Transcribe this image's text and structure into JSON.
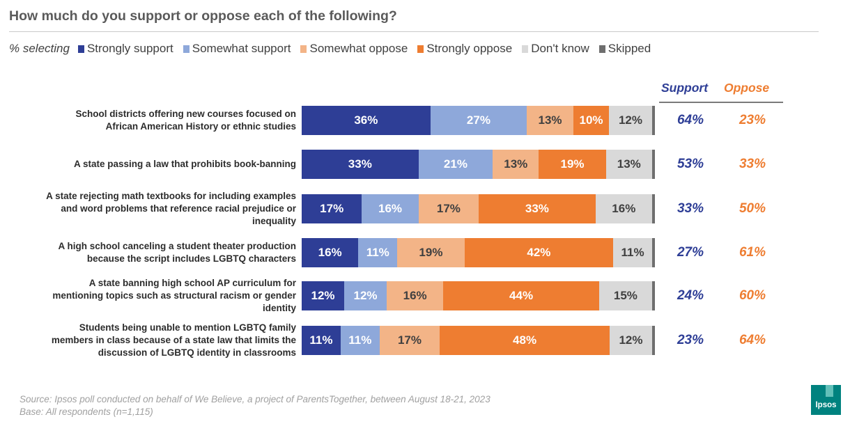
{
  "title": "How much do you support or oppose each of the following?",
  "legend": {
    "lead": "% selecting",
    "items": [
      {
        "label": "Strongly support",
        "color": "#2e3e96"
      },
      {
        "label": "Somewhat support",
        "color": "#8ea8da"
      },
      {
        "label": "Somewhat oppose",
        "color": "#f3b487"
      },
      {
        "label": "Strongly oppose",
        "color": "#ee7d31"
      },
      {
        "label": "Don't know",
        "color": "#d9d9d9"
      },
      {
        "label": "Skipped",
        "color": "#6e6e6e"
      }
    ]
  },
  "columns": {
    "support": {
      "label": "Support",
      "color": "#2e3e96"
    },
    "oppose": {
      "label": "Oppose",
      "color": "#ee7d31"
    }
  },
  "chart_data": {
    "type": "bar",
    "orientation": "horizontal",
    "stacked": true,
    "title": "How much do you support or oppose each of the following?",
    "categories": [
      [
        "School districts offering new courses focused on",
        "African American History or ethnic studies"
      ],
      [
        "A state passing  a law that prohibits book-banning"
      ],
      [
        "A state rejecting math textbooks for including examples",
        "and word problems that reference racial prejudice or",
        "inequality"
      ],
      [
        "A high school canceling a student theater production",
        "because the script includes LGBTQ characters"
      ],
      [
        "A state banning high school AP curriculum for",
        "mentioning topics such as structural racism or gender",
        "identity"
      ],
      [
        "Students being unable to mention LGBTQ family",
        "members in class because of a state law that limits the",
        "discussion of LGBTQ identity in classrooms"
      ]
    ],
    "series": [
      {
        "name": "Strongly support",
        "values": [
          36,
          33,
          17,
          16,
          12,
          11
        ],
        "labels": [
          "36%",
          "33%",
          "17%",
          "16%",
          "12%",
          "11%"
        ]
      },
      {
        "name": "Somewhat support",
        "values": [
          27,
          21,
          16,
          11,
          12,
          11
        ],
        "labels": [
          "27%",
          "21%",
          "16%",
          "11%",
          "12%",
          "11%"
        ]
      },
      {
        "name": "Somewhat oppose",
        "values": [
          13,
          13,
          17,
          19,
          16,
          17
        ],
        "labels": [
          "13%",
          "13%",
          "17%",
          "19%",
          "16%",
          "17%"
        ]
      },
      {
        "name": "Strongly oppose",
        "values": [
          10,
          19,
          33,
          42,
          44,
          48
        ],
        "labels": [
          "10%",
          "19%",
          "33%",
          "42%",
          "44%",
          "48%"
        ]
      },
      {
        "name": "Don't know",
        "values": [
          12,
          13,
          16,
          11,
          15,
          12
        ],
        "labels": [
          "12%",
          "13%",
          "16%",
          "11%",
          "15%",
          "12%"
        ]
      },
      {
        "name": "Skipped",
        "values": [
          1,
          1,
          1,
          1,
          1,
          1
        ],
        "labels": [
          "",
          "",
          "",
          "",
          "",
          ""
        ]
      }
    ],
    "net_support": [
      "64%",
      "53%",
      "33%",
      "27%",
      "24%",
      "23%"
    ],
    "net_oppose": [
      "23%",
      "33%",
      "50%",
      "61%",
      "60%",
      "64%"
    ],
    "xlim": [
      0,
      100
    ]
  },
  "source": {
    "line1": "Source: Ipsos poll conducted on behalf of We Believe, a project of ParentsTogether, between  August 18-21, 2023",
    "line2": "Base: All respondents (n=1,115)"
  },
  "logo": {
    "text": "Ipsos"
  }
}
